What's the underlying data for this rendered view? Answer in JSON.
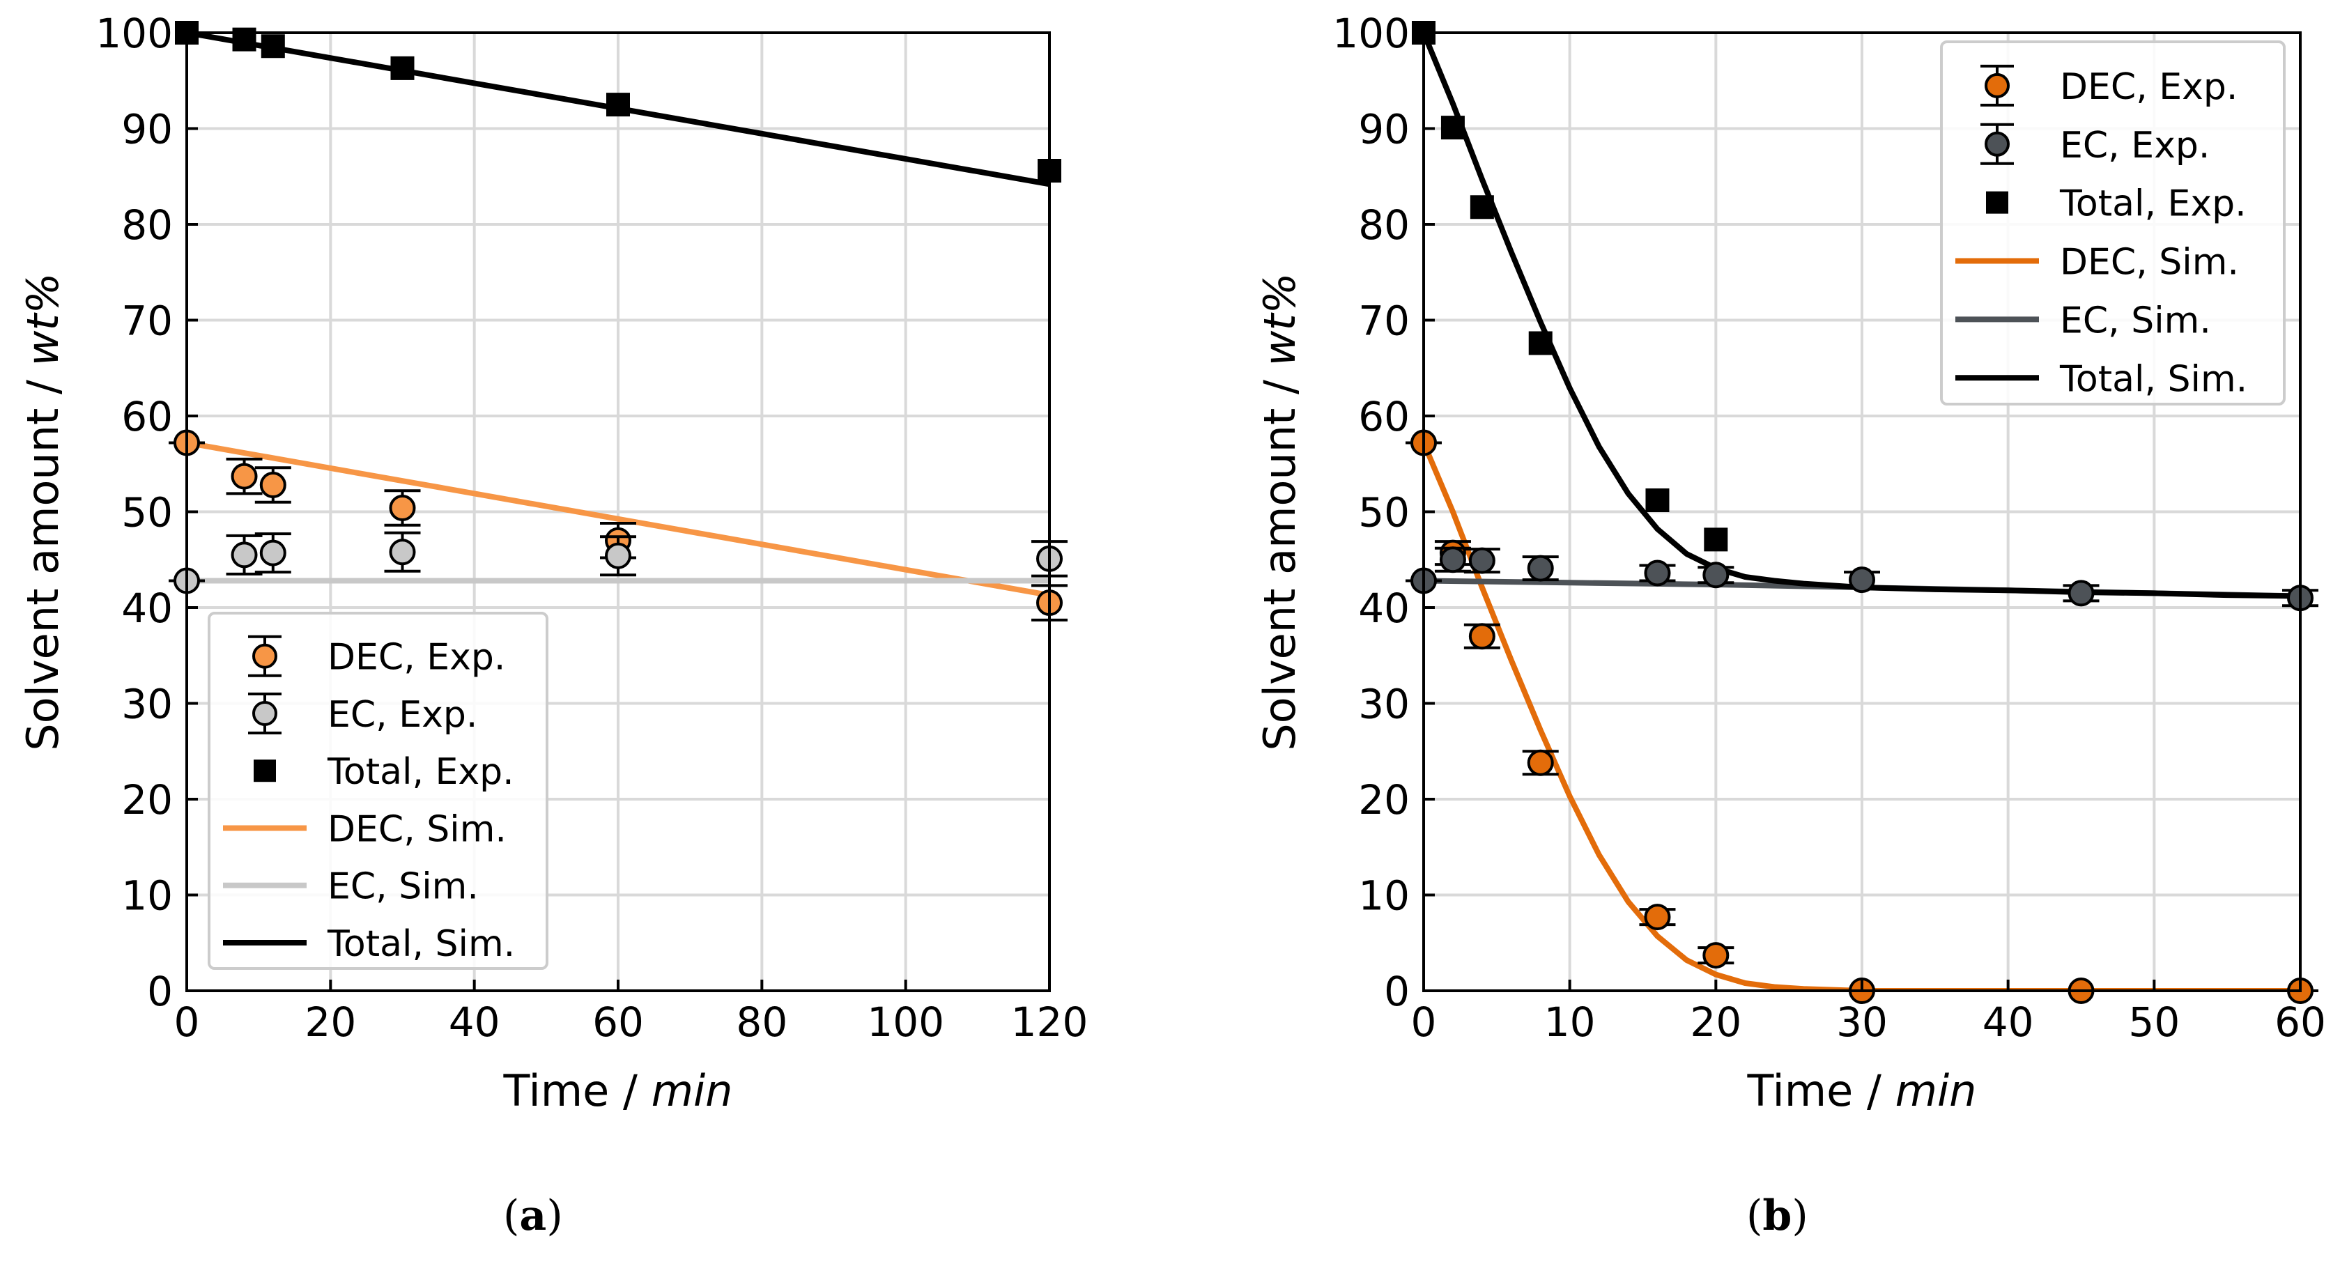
{
  "captions": [
    {
      "open": "(",
      "letter": "a",
      "close": ")"
    },
    {
      "open": "(",
      "letter": "b",
      "close": ")"
    }
  ],
  "colors": {
    "dec_a": "#F79646",
    "ec_a": "#C8C8C8",
    "dec_b": "#E36C0A",
    "ec_b": "#4D5257",
    "total": "#000000",
    "grid": "#D9D9D9"
  },
  "chart_data": [
    {
      "type": "scatter",
      "xlabel": "Time / ",
      "xlabel_unit": "min",
      "ylabel": "Solvent amount / ",
      "ylabel_unit": "wt%",
      "xlim": [
        0,
        120
      ],
      "ylim": [
        0,
        100
      ],
      "xticks": [
        0,
        20,
        40,
        60,
        80,
        100,
        120
      ],
      "yticks": [
        0,
        10,
        20,
        30,
        40,
        50,
        60,
        70,
        80,
        90,
        100
      ],
      "grid": true,
      "legend": "bottom-left",
      "series": [
        {
          "name": "DEC, Exp.",
          "kind": "errorbar",
          "color_key": "dec_a",
          "x": [
            0,
            8,
            12,
            30,
            60,
            120
          ],
          "y": [
            57.2,
            53.7,
            52.8,
            50.4,
            47.0,
            40.5
          ],
          "err": [
            0,
            1.8,
            1.8,
            1.8,
            1.8,
            1.8
          ]
        },
        {
          "name": "EC, Exp.",
          "kind": "errorbar",
          "color_key": "ec_a",
          "x": [
            0,
            8,
            12,
            30,
            60,
            120
          ],
          "y": [
            42.8,
            45.5,
            45.7,
            45.8,
            45.4,
            45.1
          ],
          "err": [
            0,
            2.0,
            2.0,
            2.0,
            2.0,
            1.8
          ]
        },
        {
          "name": "Total, Exp.",
          "kind": "square",
          "color_key": "total",
          "x": [
            0,
            8,
            12,
            30,
            60,
            120
          ],
          "y": [
            100,
            99.3,
            98.6,
            96.3,
            92.5,
            85.6
          ]
        },
        {
          "name": "DEC, Sim.",
          "kind": "line",
          "color_key": "dec_a",
          "x": [
            0,
            120
          ],
          "y": [
            57.2,
            41.3
          ]
        },
        {
          "name": "EC, Sim.",
          "kind": "line",
          "color_key": "ec_a",
          "x": [
            0,
            120
          ],
          "y": [
            42.8,
            42.8
          ]
        },
        {
          "name": "Total, Sim.",
          "kind": "line",
          "color_key": "total",
          "x": [
            0,
            120
          ],
          "y": [
            100,
            84.2
          ]
        }
      ]
    },
    {
      "type": "scatter",
      "xlabel": "Time / ",
      "xlabel_unit": "min",
      "ylabel": "Solvent amount / ",
      "ylabel_unit": "wt%",
      "xlim": [
        0,
        60
      ],
      "ylim": [
        0,
        100
      ],
      "xticks": [
        0,
        10,
        20,
        30,
        40,
        50,
        60
      ],
      "yticks": [
        0,
        10,
        20,
        30,
        40,
        50,
        60,
        70,
        80,
        90,
        100
      ],
      "grid": true,
      "legend": "top-right",
      "series": [
        {
          "name": "DEC, Exp.",
          "kind": "errorbar",
          "color_key": "dec_b",
          "x": [
            0,
            2,
            4,
            8,
            16,
            20,
            30,
            45,
            60
          ],
          "y": [
            57.2,
            45.7,
            37.0,
            23.8,
            7.7,
            3.7,
            0,
            0,
            0
          ],
          "err": [
            0,
            1.2,
            1.2,
            1.2,
            0.8,
            0.8,
            0,
            0,
            0
          ]
        },
        {
          "name": "EC, Exp.",
          "kind": "errorbar",
          "color_key": "ec_b",
          "x": [
            0,
            2,
            4,
            8,
            16,
            20,
            30,
            45,
            60
          ],
          "y": [
            42.8,
            45.0,
            44.9,
            44.1,
            43.6,
            43.4,
            42.9,
            41.5,
            41.0
          ],
          "err": [
            0,
            1.2,
            1.2,
            1.2,
            0.8,
            0.8,
            0.8,
            0.8,
            0.8
          ]
        },
        {
          "name": "Total, Exp.",
          "kind": "square",
          "color_key": "total",
          "x": [
            0,
            2,
            4,
            8,
            16,
            20
          ],
          "y": [
            100,
            90.1,
            81.8,
            67.6,
            51.2,
            47.1
          ]
        },
        {
          "name": "DEC, Sim.",
          "kind": "line",
          "color_key": "dec_b",
          "x": [
            0,
            2,
            4,
            6,
            8,
            10,
            12,
            14,
            16,
            18,
            20,
            22,
            24,
            26,
            28,
            30,
            35,
            40,
            45,
            50,
            55,
            60
          ],
          "y": [
            57.2,
            50.0,
            42.1,
            34.5,
            27.2,
            20.3,
            14.2,
            9.3,
            5.7,
            3.2,
            1.7,
            0.8,
            0.4,
            0.2,
            0.1,
            0,
            0,
            0,
            0,
            0,
            0,
            0
          ]
        },
        {
          "name": "EC, Sim.",
          "kind": "line",
          "color_key": "ec_b",
          "x": [
            0,
            10,
            20,
            30,
            40,
            50,
            60
          ],
          "y": [
            42.8,
            42.6,
            42.4,
            42.1,
            41.8,
            41.5,
            41.2
          ]
        },
        {
          "name": "Total, Sim.",
          "kind": "line",
          "color_key": "total",
          "x": [
            0,
            2,
            4,
            6,
            8,
            10,
            12,
            14,
            16,
            18,
            20,
            22,
            24,
            26,
            28,
            30,
            35,
            40,
            45,
            50,
            55,
            60
          ],
          "y": [
            100,
            92.6,
            84.7,
            77.1,
            69.8,
            62.9,
            56.8,
            51.9,
            48.2,
            45.6,
            44.1,
            43.2,
            42.8,
            42.5,
            42.3,
            42.1,
            41.9,
            41.8,
            41.6,
            41.5,
            41.3,
            41.2
          ]
        }
      ]
    }
  ]
}
